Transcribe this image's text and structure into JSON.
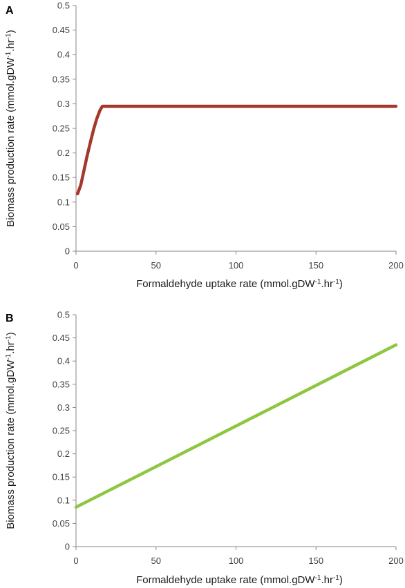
{
  "chart_data": [
    {
      "panel": "A",
      "type": "line",
      "xlabel": "Formaldehyde uptake rate (mmol.gDW",
      "xlabel_sup1": "-1",
      "xlabel_mid": ".hr",
      "xlabel_sup2": "-1",
      "xlabel_end": ")",
      "ylabel": "Biomass production rate (mmol.gDW",
      "ylabel_sup1": "-1",
      "ylabel_mid": ".hr",
      "ylabel_sup2": "-1",
      "ylabel_end": ")",
      "xlim": [
        0,
        200
      ],
      "ylim": [
        0,
        0.5
      ],
      "xticks": [
        "0",
        "50",
        "100",
        "150",
        "200"
      ],
      "yticks": [
        "0",
        "0.05",
        "0.1",
        "0.15",
        "0.2",
        "0.25",
        "0.3",
        "0.35",
        "0.4",
        "0.45",
        "0.5"
      ],
      "grid": false,
      "series": [
        {
          "color": "#a5382d",
          "x": [
            1,
            3,
            5,
            7,
            9,
            11,
            13,
            15,
            16.5,
            200
          ],
          "y": [
            0.117,
            0.135,
            0.165,
            0.195,
            0.222,
            0.248,
            0.27,
            0.287,
            0.295,
            0.295
          ]
        }
      ]
    },
    {
      "panel": "B",
      "type": "line",
      "xlabel": "Formaldehyde uptake rate (mmol.gDW",
      "xlabel_sup1": "-1",
      "xlabel_mid": ".hr",
      "xlabel_sup2": "-1",
      "xlabel_end": ")",
      "ylabel": "Biomass production rate (mmol.gDW",
      "ylabel_sup1": "-1",
      "ylabel_mid": ".hr",
      "ylabel_sup2": "-1",
      "ylabel_end": ")",
      "xlim": [
        0,
        200
      ],
      "ylim": [
        0,
        0.5
      ],
      "xticks": [
        "0",
        "50",
        "100",
        "150",
        "200"
      ],
      "yticks": [
        "0",
        "0.05",
        "0.1",
        "0.15",
        "0.2",
        "0.25",
        "0.3",
        "0.35",
        "0.4",
        "0.45",
        "0.5"
      ],
      "grid": false,
      "series": [
        {
          "color": "#8dc63f",
          "x": [
            0,
            200
          ],
          "y": [
            0.085,
            0.435
          ]
        }
      ]
    }
  ]
}
